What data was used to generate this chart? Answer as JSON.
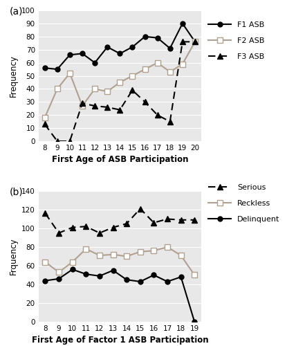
{
  "panel_a": {
    "ages": [
      8,
      9,
      10,
      11,
      12,
      13,
      14,
      15,
      16,
      17,
      18,
      19,
      20
    ],
    "F1_ASB": [
      56,
      55,
      66,
      67,
      60,
      72,
      67,
      72,
      80,
      79,
      71,
      90,
      76
    ],
    "F2_ASB": [
      18,
      40,
      52,
      27,
      40,
      38,
      45,
      50,
      55,
      60,
      53,
      59,
      76
    ],
    "F3_ASB": [
      13,
      0,
      0,
      29,
      27,
      26,
      24,
      39,
      30,
      20,
      15,
      76,
      76
    ],
    "ylabel": "Frequency",
    "xlabel": "First Age of ASB Participation",
    "ylim": [
      0,
      100
    ],
    "yticks": [
      0,
      10,
      20,
      30,
      40,
      50,
      60,
      70,
      80,
      90,
      100
    ]
  },
  "panel_b": {
    "ages": [
      8,
      9,
      10,
      11,
      12,
      13,
      14,
      15,
      16,
      17,
      18,
      19
    ],
    "Serious": [
      116,
      95,
      101,
      102,
      95,
      101,
      105,
      121,
      106,
      110,
      109,
      109
    ],
    "Reckless": [
      64,
      53,
      64,
      78,
      71,
      72,
      70,
      75,
      76,
      80,
      71,
      50
    ],
    "Delinquent": [
      44,
      46,
      56,
      51,
      49,
      55,
      45,
      43,
      50,
      43,
      48,
      0
    ],
    "ylabel": "Frquency",
    "xlabel": "First Age of Factor 1 ASB Participation",
    "ylim": [
      0,
      140
    ],
    "yticks": [
      0,
      20,
      40,
      60,
      80,
      100,
      120,
      140
    ]
  },
  "bg_color": "#e8e8e8",
  "label_a": "(a)",
  "label_b": "(b)"
}
